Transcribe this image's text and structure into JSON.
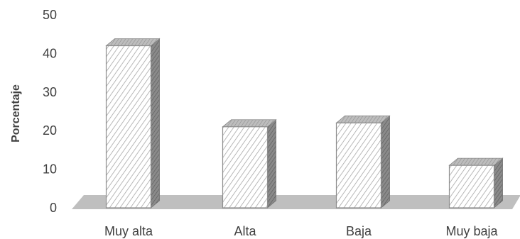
{
  "chart_data": {
    "type": "bar",
    "style": "3d-column, hatched fill",
    "title": "",
    "xlabel": "",
    "ylabel": "Porcentaje",
    "categories": [
      "Muy alta",
      "Alta",
      "Baja",
      "Muy baja"
    ],
    "values": [
      42,
      21,
      22,
      11
    ],
    "ylim": [
      0,
      50
    ],
    "yticks": [
      "0",
      "10",
      "20",
      "30",
      "40",
      "50"
    ],
    "grid": false,
    "legend": "none",
    "colors": {
      "bar_front_stroke": "#8c8c8c",
      "bar_hatch": "#a6a6a6",
      "bar_side": "#7f7f7f",
      "bar_top": "#b0b0b0",
      "floor": "#bfbfbf",
      "text": "#404040"
    }
  }
}
